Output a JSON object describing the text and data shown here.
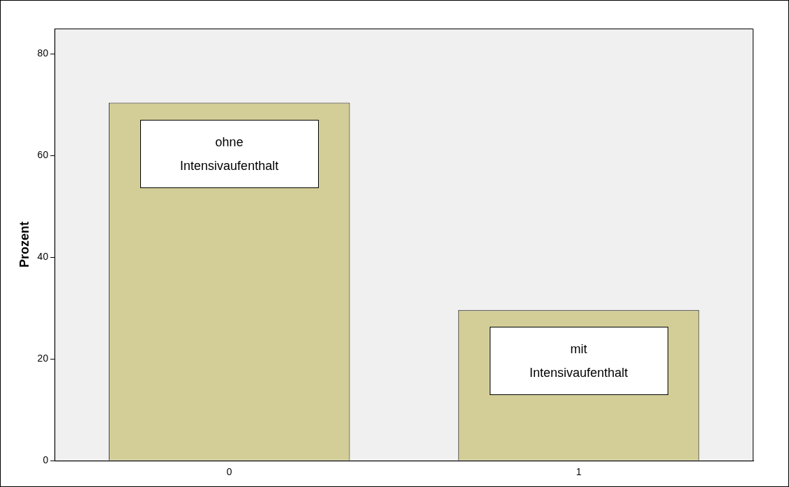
{
  "chart_data": {
    "type": "bar",
    "ylabel": "Prozent",
    "categories": [
      "0",
      "1"
    ],
    "values": [
      70.4,
      29.6
    ],
    "color": "#d3ce97",
    "ylim": [
      0,
      85
    ],
    "yticks": [
      0,
      20,
      40,
      60,
      80
    ],
    "grid": false,
    "legend": false,
    "annotations": [
      "ohne Intensivaufenthalt",
      "mit Intensivaufenthalt"
    ]
  }
}
